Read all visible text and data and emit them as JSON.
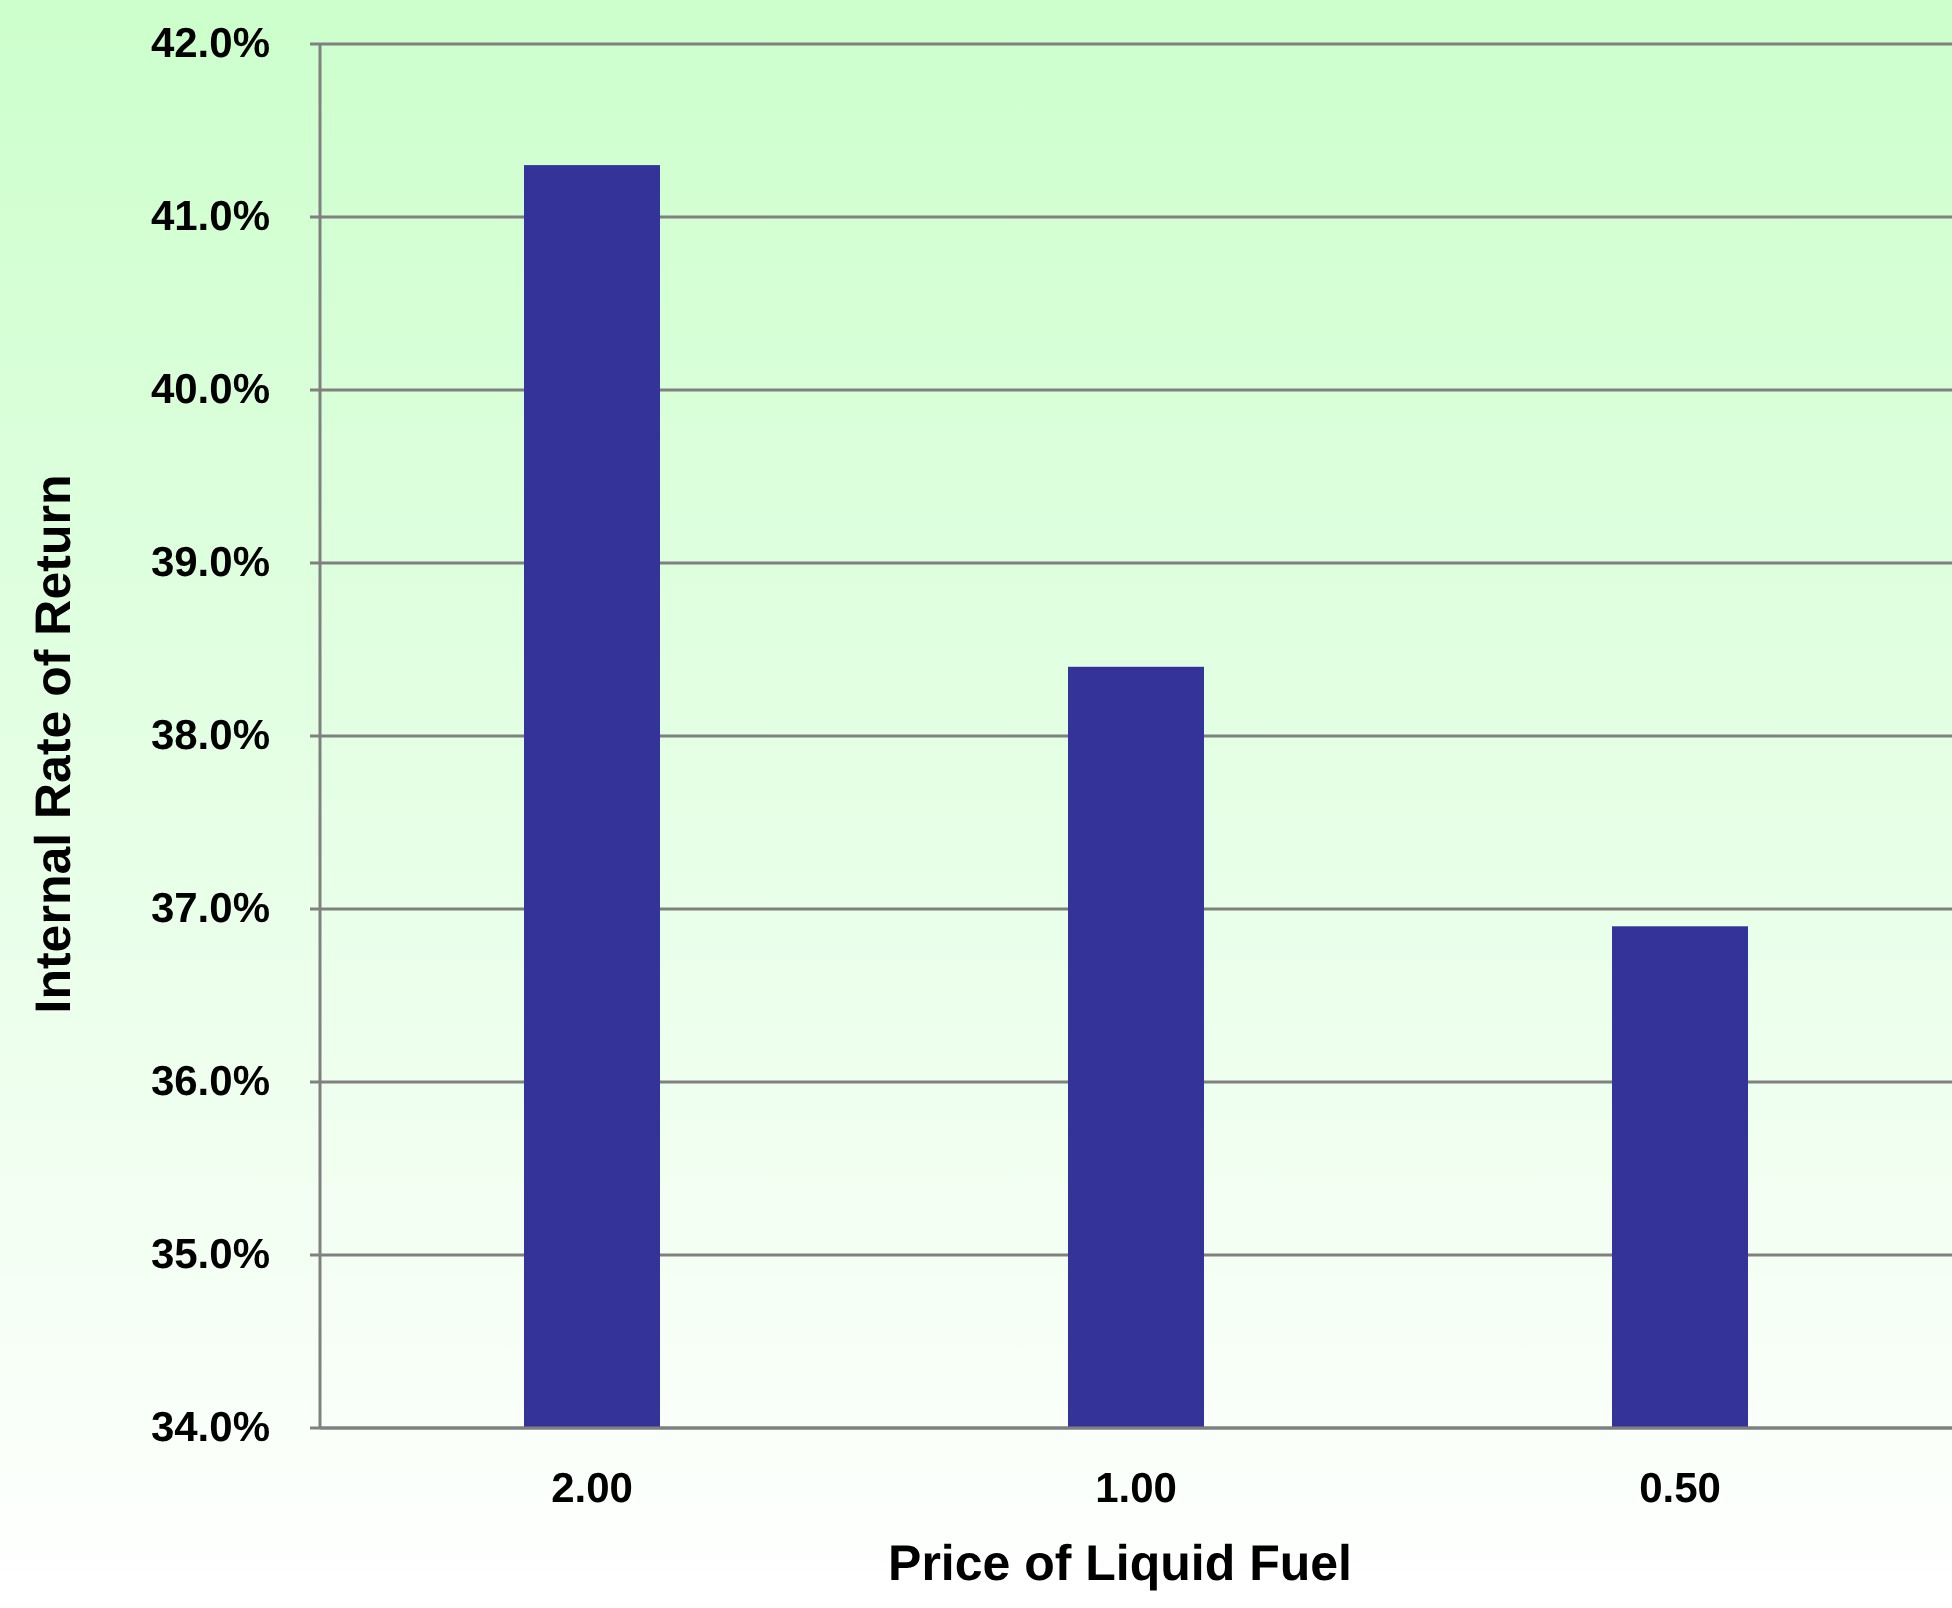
{
  "chart_data": {
    "type": "bar",
    "xlabel": "Price of Liquid Fuel",
    "ylabel": "Internal Rate of Return",
    "categories": [
      "2.00",
      "1.00",
      "0.50"
    ],
    "values": [
      41.3,
      38.4,
      36.9
    ],
    "color": "#333399",
    "ylim": [
      34,
      42
    ],
    "yticks": [
      {
        "value": 34,
        "label": "34.0%"
      },
      {
        "value": 35,
        "label": "35.0%"
      },
      {
        "value": 36,
        "label": "36.0%"
      },
      {
        "value": 37,
        "label": "37.0%"
      },
      {
        "value": 38,
        "label": "38.0%"
      },
      {
        "value": 39,
        "label": "39.0%"
      },
      {
        "value": 40,
        "label": "40.0%"
      },
      {
        "value": 41,
        "label": "41.0%"
      },
      {
        "value": 42,
        "label": "42.0%"
      }
    ],
    "grid": "y"
  }
}
